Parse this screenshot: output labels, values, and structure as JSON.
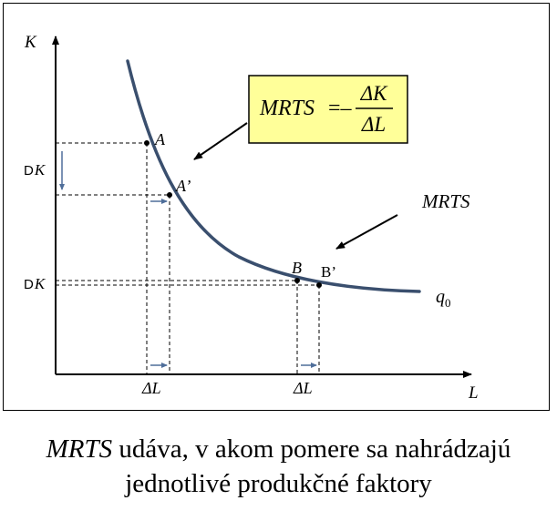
{
  "axes": {
    "y_label": "K",
    "x_label": "L"
  },
  "points": {
    "a": "A",
    "a_prime": "A’",
    "b": "B",
    "b_prime": "B’"
  },
  "curve_label": {
    "main": "q",
    "sub": "0"
  },
  "delta_k_left": {
    "prefix": "D",
    "var": "K"
  },
  "delta_k_lower": {
    "prefix": "D",
    "var": "K"
  },
  "delta_l_left": "ΔL",
  "delta_l_right": "ΔL",
  "formula": {
    "lhs": "MRTS",
    "equals": "=–",
    "numerator": "ΔK",
    "denominator": "ΔL",
    "box_fill": "#FFFF99"
  },
  "mrts_label": "MRTS",
  "caption": {
    "italic": "MRTS",
    "line1_rest": " udáva, v akom pomere sa nahrádzajú",
    "line2": "jednotlivé produkčné faktory"
  },
  "colors": {
    "curve": "#3A4F6E",
    "small_arrow": "#4F6E9A",
    "axis": "#000000"
  }
}
